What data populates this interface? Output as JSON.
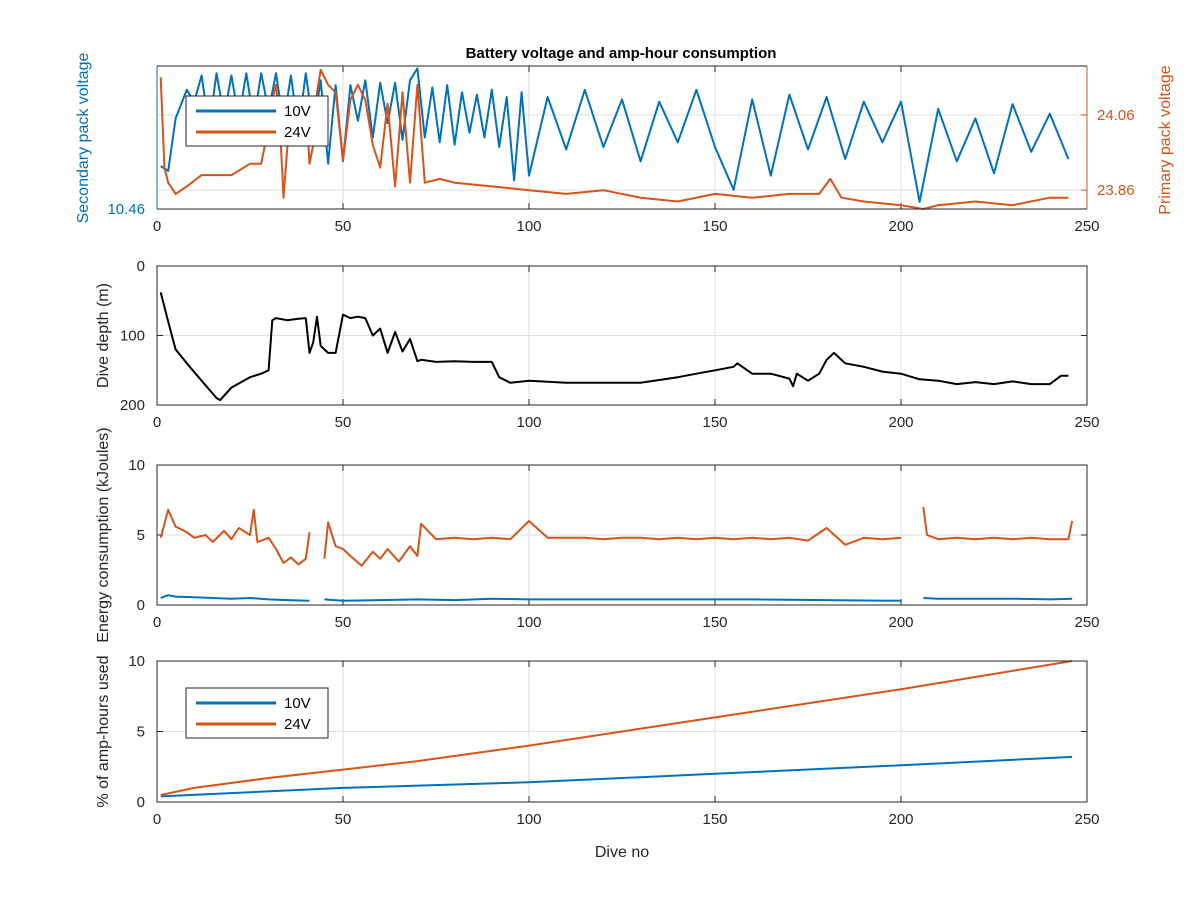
{
  "figure_title": "Battery voltage and amp-hour consumption",
  "colors": {
    "blue": "#0072BD",
    "orange": "#D95319",
    "black": "#000000",
    "axis": "#262626",
    "grid": "#dfdfdf"
  },
  "chart_data": [
    {
      "type": "line",
      "title": "Battery voltage and amp-hour consumption",
      "xlabel": "",
      "ylabel_left": "Secondary pack voltage",
      "ylabel_right": "Primary pack voltage",
      "xlim": [
        0,
        250
      ],
      "xticks": [
        "0",
        "50",
        "100",
        "150",
        "200",
        "250"
      ],
      "ylim_left": [
        10.46,
        10.52
      ],
      "yticks_left": [
        "10.46"
      ],
      "ylim_right": [
        23.81,
        24.19
      ],
      "yticks_right": [
        "23.86",
        "24.06"
      ],
      "grid": true,
      "legend": {
        "location": "top-left",
        "entries": [
          "10V",
          "24V"
        ]
      },
      "series": [
        {
          "name": "10V",
          "axis": "left",
          "x": [
            1,
            3,
            5,
            8,
            10,
            12,
            14,
            16,
            18,
            20,
            22,
            24,
            26,
            28,
            30,
            32,
            34,
            36,
            38,
            40,
            42,
            44,
            46,
            48,
            50,
            52,
            54,
            56,
            58,
            60,
            62,
            64,
            66,
            68,
            70,
            72,
            74,
            76,
            78,
            80,
            82,
            84,
            86,
            88,
            90,
            92,
            94,
            96,
            98,
            100,
            105,
            110,
            115,
            120,
            125,
            130,
            135,
            140,
            145,
            150,
            155,
            160,
            165,
            170,
            175,
            180,
            185,
            190,
            195,
            200,
            205,
            210,
            215,
            220,
            225,
            230,
            235,
            240,
            245
          ],
          "y": [
            10.478,
            10.476,
            10.498,
            10.51,
            10.505,
            10.516,
            10.494,
            10.517,
            10.499,
            10.516,
            10.498,
            10.517,
            10.497,
            10.517,
            10.501,
            10.517,
            10.496,
            10.516,
            10.493,
            10.517,
            10.494,
            10.514,
            10.479,
            10.512,
            10.48,
            10.512,
            10.497,
            10.514,
            10.49,
            10.513,
            10.496,
            10.513,
            10.489,
            10.514,
            10.519,
            10.49,
            10.511,
            10.488,
            10.512,
            10.487,
            10.509,
            10.492,
            10.508,
            10.49,
            10.51,
            10.486,
            10.507,
            10.472,
            10.509,
            10.474,
            10.507,
            10.485,
            10.51,
            10.486,
            10.506,
            10.48,
            10.505,
            10.488,
            10.51,
            10.486,
            10.468,
            10.506,
            10.474,
            10.508,
            10.485,
            10.507,
            10.481,
            10.505,
            10.488,
            10.505,
            10.463,
            10.502,
            10.48,
            10.498,
            10.475,
            10.504,
            10.484,
            10.5,
            10.481
          ]
        },
        {
          "name": "24V",
          "axis": "right",
          "x": [
            1,
            2,
            3,
            5,
            8,
            12,
            16,
            20,
            25,
            28,
            29,
            30,
            31,
            32,
            33,
            34,
            36,
            38,
            40,
            41,
            42,
            43,
            44,
            46,
            48,
            50,
            52,
            54,
            56,
            58,
            60,
            62,
            64,
            66,
            68,
            70,
            72,
            76,
            80,
            90,
            100,
            110,
            120,
            130,
            140,
            150,
            160,
            170,
            178,
            181,
            184,
            190,
            200,
            206,
            210,
            220,
            230,
            240,
            245
          ],
          "y": [
            24.16,
            23.92,
            23.88,
            23.85,
            23.87,
            23.9,
            23.9,
            23.9,
            23.93,
            23.93,
            23.98,
            24.04,
            24.1,
            24.14,
            24.04,
            23.84,
            24.1,
            24.08,
            24.1,
            23.93,
            23.98,
            24.12,
            24.18,
            24.14,
            24.12,
            23.94,
            24.1,
            24.14,
            24.1,
            23.98,
            23.92,
            24.09,
            23.87,
            24.12,
            23.88,
            24.14,
            23.88,
            23.89,
            23.88,
            23.87,
            23.86,
            23.85,
            23.86,
            23.84,
            23.83,
            23.85,
            23.84,
            23.85,
            23.85,
            23.89,
            23.84,
            23.83,
            23.82,
            23.81,
            23.82,
            23.83,
            23.82,
            23.84,
            23.84
          ]
        }
      ]
    },
    {
      "type": "line",
      "title": "",
      "xlabel": "",
      "ylabel": "Dive depth (m)",
      "xlim": [
        0,
        250
      ],
      "xticks": [
        "0",
        "50",
        "100",
        "150",
        "200",
        "250"
      ],
      "ylim": [
        0,
        200
      ],
      "yreversed": true,
      "yticks": [
        "0",
        "100",
        "200"
      ],
      "grid": true,
      "series": [
        {
          "name": "",
          "x": [
            1,
            3,
            5,
            8,
            12,
            16,
            17,
            20,
            25,
            28,
            30,
            31,
            32,
            35,
            38,
            40,
            41,
            42,
            43,
            44,
            45,
            46,
            48,
            50,
            52,
            54,
            56,
            58,
            60,
            62,
            64,
            66,
            68,
            70,
            71,
            75,
            80,
            85,
            90,
            92,
            95,
            100,
            110,
            120,
            130,
            140,
            145,
            150,
            155,
            156,
            160,
            165,
            170,
            171,
            172,
            175,
            178,
            180,
            182,
            185,
            190,
            195,
            200,
            205,
            210,
            215,
            220,
            225,
            230,
            235,
            240,
            243,
            245
          ],
          "y": [
            38,
            80,
            120,
            140,
            165,
            190,
            193,
            175,
            160,
            155,
            150,
            78,
            75,
            78,
            76,
            75,
            125,
            110,
            73,
            115,
            120,
            125,
            125,
            70,
            75,
            73,
            75,
            100,
            90,
            125,
            95,
            123,
            105,
            137,
            135,
            138,
            137,
            138,
            138,
            160,
            168,
            165,
            168,
            168,
            168,
            160,
            155,
            150,
            145,
            140,
            155,
            155,
            162,
            173,
            155,
            165,
            155,
            135,
            125,
            140,
            145,
            152,
            155,
            163,
            165,
            170,
            167,
            170,
            166,
            170,
            170,
            158,
            158
          ]
        }
      ]
    },
    {
      "type": "line",
      "title": "",
      "xlabel": "",
      "ylabel": "Energy consumption (kJoules)",
      "xlim": [
        0,
        250
      ],
      "xticks": [
        "0",
        "50",
        "100",
        "150",
        "200",
        "250"
      ],
      "ylim": [
        0,
        10
      ],
      "yticks": [
        "0",
        "5",
        "10"
      ],
      "grid": true,
      "series": [
        {
          "name": "10V",
          "gap_after_x": [
            41,
            200
          ],
          "x": [
            1,
            3,
            5,
            10,
            15,
            20,
            25,
            30,
            35,
            41,
            45,
            50,
            60,
            70,
            80,
            90,
            100,
            120,
            140,
            160,
            180,
            200,
            206,
            210,
            220,
            230,
            240,
            246
          ],
          "y": [
            0.5,
            0.7,
            0.6,
            0.55,
            0.5,
            0.45,
            0.5,
            0.4,
            0.35,
            0.3,
            0.4,
            0.3,
            0.35,
            0.4,
            0.35,
            0.45,
            0.4,
            0.4,
            0.4,
            0.4,
            0.35,
            0.3,
            0.5,
            0.45,
            0.45,
            0.45,
            0.4,
            0.45
          ]
        },
        {
          "name": "24V",
          "gap_after_x": [
            41,
            200
          ],
          "x": [
            1,
            3,
            5,
            8,
            10,
            13,
            15,
            18,
            20,
            22,
            25,
            26,
            27,
            30,
            32,
            34,
            36,
            38,
            40,
            41,
            45,
            46,
            48,
            50,
            52,
            55,
            58,
            60,
            62,
            65,
            68,
            70,
            71,
            75,
            80,
            85,
            90,
            95,
            100,
            105,
            110,
            115,
            120,
            125,
            130,
            135,
            140,
            145,
            150,
            155,
            160,
            165,
            170,
            175,
            180,
            185,
            190,
            195,
            200,
            206,
            207,
            210,
            215,
            220,
            225,
            230,
            235,
            240,
            245,
            246
          ],
          "y": [
            4.8,
            6.8,
            5.6,
            5.2,
            4.8,
            5.0,
            4.5,
            5.3,
            4.7,
            5.5,
            5.0,
            6.8,
            4.5,
            4.8,
            4.0,
            3.0,
            3.4,
            2.9,
            3.3,
            5.2,
            3.3,
            5.9,
            4.2,
            4.0,
            3.5,
            2.8,
            3.8,
            3.3,
            4.0,
            3.1,
            4.2,
            3.5,
            5.8,
            4.7,
            4.8,
            4.7,
            4.8,
            4.7,
            6.0,
            4.8,
            4.8,
            4.8,
            4.7,
            4.8,
            4.8,
            4.7,
            4.8,
            4.7,
            4.8,
            4.7,
            4.8,
            4.7,
            4.8,
            4.6,
            5.5,
            4.3,
            4.8,
            4.7,
            4.8,
            7.0,
            5.0,
            4.7,
            4.8,
            4.7,
            4.8,
            4.7,
            4.8,
            4.7,
            4.7,
            6.0
          ]
        }
      ]
    },
    {
      "type": "line",
      "title": "",
      "xlabel": "Dive no",
      "ylabel": "% of amp-hours used",
      "xlim": [
        0,
        250
      ],
      "xticks": [
        "0",
        "50",
        "100",
        "150",
        "200",
        "250"
      ],
      "ylim": [
        0,
        10
      ],
      "yticks": [
        "0",
        "5",
        "10"
      ],
      "grid": true,
      "legend": {
        "location": "top-left",
        "entries": [
          "10V",
          "24V"
        ]
      },
      "series": [
        {
          "name": "10V",
          "x": [
            1,
            50,
            100,
            150,
            200,
            246
          ],
          "y": [
            0.4,
            1.0,
            1.4,
            2.0,
            2.6,
            3.2
          ]
        },
        {
          "name": "24V",
          "x": [
            1,
            10,
            30,
            50,
            70,
            100,
            150,
            200,
            246
          ],
          "y": [
            0.5,
            1.0,
            1.7,
            2.3,
            2.9,
            4.0,
            6.0,
            8.0,
            10.0
          ]
        }
      ]
    }
  ]
}
